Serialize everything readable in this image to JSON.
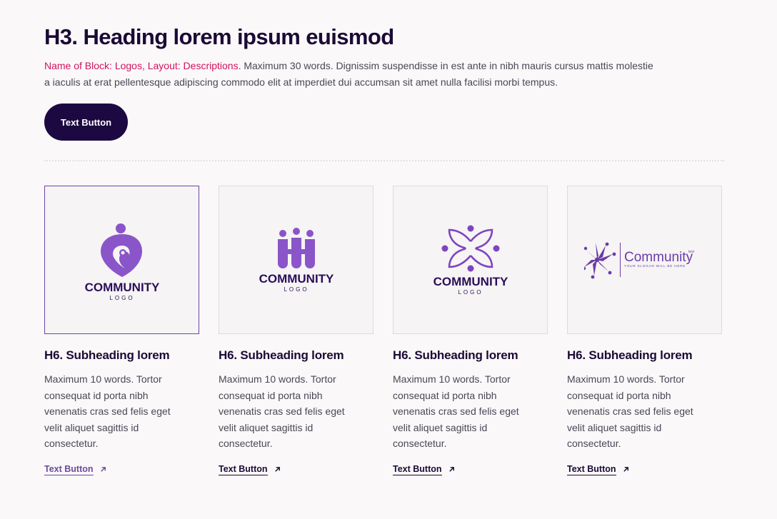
{
  "header": {
    "title": "H3. Heading lorem ipsum euismod",
    "desc_accent": "Name of Block: Logos, Layout: Descriptions.",
    "desc_body": " Maximum 30 words. Dignissim suspendisse in est ante in nibh mauris cursus mattis molestie a iaculis at erat pellentesque adipiscing commodo elit at imperdiet dui accumsan sit amet nulla facilisi morbi tempus.",
    "button_label": "Text Button"
  },
  "logos": [
    {
      "line1": "COMMUNITY",
      "line2": "LOGO"
    },
    {
      "line1": "COMMUNITY",
      "line2": "LOGO"
    },
    {
      "line1": "COMMUNITY",
      "line2": "LOGO"
    },
    {
      "word": "Community",
      "superscript": "text",
      "slogan": "YOUR SLOGAN WILL BE HERE"
    }
  ],
  "cards": [
    {
      "title": "H6. Subheading lorem",
      "text": "Maximum 10 words. Tortor consequat id porta nibh venenatis cras sed felis eget velit aliquet sagittis id consectetur.",
      "link": "Text Button"
    },
    {
      "title": "H6. Subheading lorem",
      "text": "Maximum 10 words. Tortor consequat id porta nibh venenatis cras sed felis eget velit aliquet sagittis id consectetur.",
      "link": "Text Button"
    },
    {
      "title": "H6. Subheading lorem",
      "text": "Maximum 10 words. Tortor consequat id porta nibh venenatis cras sed felis eget velit aliquet sagittis id consectetur.",
      "link": "Text Button"
    },
    {
      "title": "H6. Subheading lorem",
      "text": "Maximum 10 words. Tortor consequat id porta nibh venenatis cras sed felis eget velit aliquet sagittis id consectetur.",
      "link": "Text Button"
    }
  ],
  "colors": {
    "logo_purple": "#8a55c9",
    "logo_dark": "#2a0e5a",
    "accent": "#d1135f",
    "button_bg": "#1c0942"
  },
  "icons": [
    "community-logo-person-icon",
    "community-logo-people-icon",
    "community-logo-circle-icon",
    "community-logo-stars-icon",
    "arrow-up-right-icon"
  ]
}
